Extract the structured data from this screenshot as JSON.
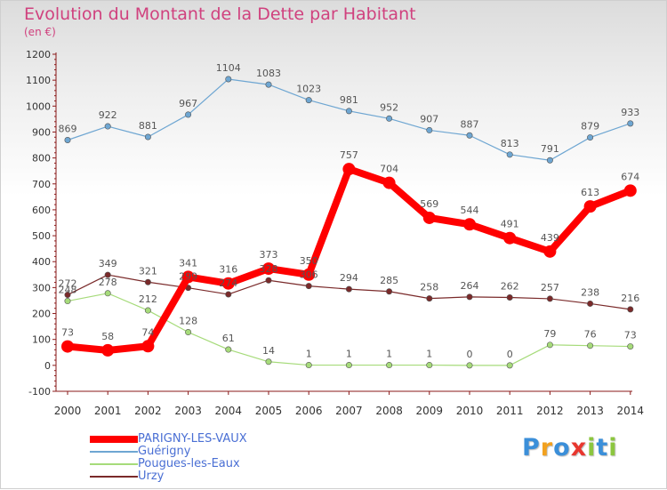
{
  "title": "Evolution du Montant de la Dette par Habitant",
  "unit_label": "(en €)",
  "logo": {
    "text": "Proxiti",
    "letters": [
      {
        "char": "P",
        "color": "#3b8fd9"
      },
      {
        "char": "r",
        "color": "#f2a11f"
      },
      {
        "char": "o",
        "color": "#3b8fd9"
      },
      {
        "char": "x",
        "color": "#e8372f"
      },
      {
        "char": "i",
        "color": "#8cc63f"
      },
      {
        "char": "t",
        "color": "#3b8fd9"
      },
      {
        "char": "i",
        "color": "#8cc63f"
      }
    ]
  },
  "chart_data": {
    "type": "line",
    "title": "Evolution du Montant de la Dette par Habitant",
    "subtitle": "(en €)",
    "x": [
      "2000",
      "2001",
      "2002",
      "2003",
      "2004",
      "2005",
      "2006",
      "2007",
      "2008",
      "2009",
      "2010",
      "2011",
      "2012",
      "2013",
      "2014"
    ],
    "ylim": [
      -100,
      1200
    ],
    "yticks": [
      -100,
      0,
      100,
      200,
      300,
      400,
      500,
      600,
      700,
      800,
      900,
      1000,
      1100,
      1200
    ],
    "grid": false,
    "legend_position": "bottom-left",
    "series": [
      {
        "name": "PARIGNY-LES-VAUX",
        "color": "#ff0000",
        "values": [
          73,
          58,
          74,
          341,
          316,
          373,
          350,
          757,
          704,
          569,
          544,
          491,
          439,
          613,
          674
        ]
      },
      {
        "name": "Guérigny",
        "color": "#6ea6d2",
        "values": [
          869,
          922,
          881,
          967,
          1104,
          1083,
          1023,
          981,
          952,
          907,
          887,
          813,
          791,
          879,
          933
        ]
      },
      {
        "name": "Pougues-les-Eaux",
        "color": "#a6db7a",
        "values": [
          248,
          278,
          212,
          128,
          61,
          14,
          1,
          1,
          1,
          1,
          0,
          0,
          79,
          76,
          73
        ]
      },
      {
        "name": "Urzy",
        "color": "#7a2a2a",
        "values": [
          272,
          349,
          321,
          299,
          274,
          328,
          306,
          294,
          285,
          258,
          264,
          262,
          257,
          238,
          216
        ]
      }
    ],
    "point_labels": [
      [
        "73",
        "58",
        "74",
        "341",
        "316",
        "373",
        "350",
        "757",
        "704",
        "569",
        "544",
        "491",
        "439",
        "613",
        "674"
      ],
      [
        "869",
        "922",
        "881",
        "967",
        "1104",
        "1083",
        "1023",
        "981",
        "952",
        "907",
        "887",
        "813",
        "791",
        "879",
        "933"
      ],
      [
        "248",
        "278",
        "212",
        "128",
        "61",
        "14",
        "1",
        "1",
        "1",
        "1",
        "0",
        "0",
        "79",
        "76",
        "73"
      ],
      [
        "272",
        "349",
        "321",
        "299",
        "274",
        "328",
        "306",
        "294",
        "285",
        "258",
        "264",
        "262",
        "257",
        "238",
        "216"
      ]
    ]
  }
}
